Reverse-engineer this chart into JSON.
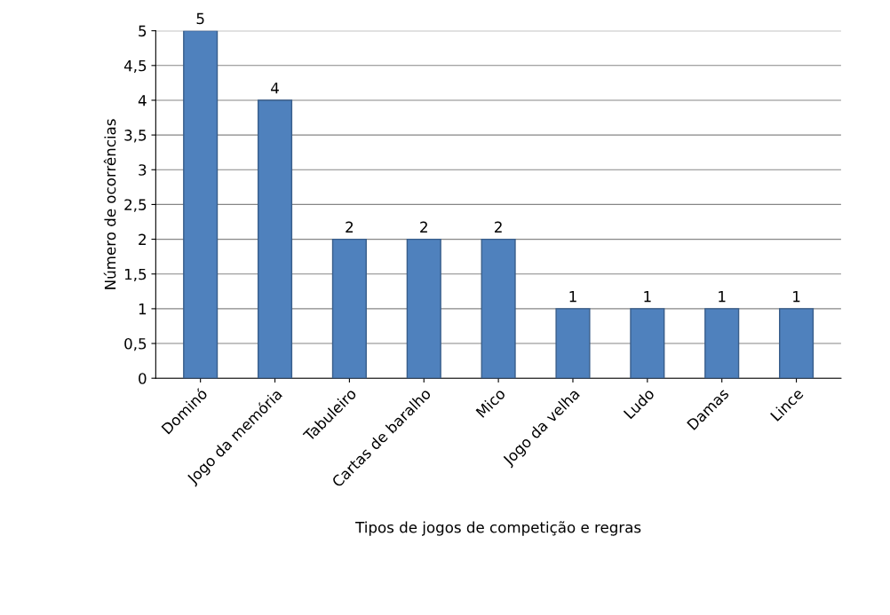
{
  "chart_data": {
    "type": "bar",
    "xlabel": "Tipos de jogos de competição e regras",
    "ylabel": "Número de ocorrências",
    "categories": [
      "Dominó",
      "Jogo da memória",
      "Tabuleiro",
      "Cartas de baralho",
      "Mico",
      "Jogo da velha",
      "Ludo",
      "Damas",
      "Lince"
    ],
    "values": [
      5,
      4,
      2,
      2,
      2,
      1,
      1,
      1,
      1
    ],
    "color": "#4f81bd",
    "ylim": [
      0,
      5
    ],
    "yticks": [
      0,
      {
        "value": 0.5,
        "label": "0,5"
      },
      1,
      {
        "value": 1.5,
        "label": "1,5"
      },
      2,
      {
        "value": 2.5,
        "label": "2,5"
      },
      3,
      {
        "value": 3.5,
        "label": "3,5"
      },
      4,
      {
        "value": 4.5,
        "label": "4,5"
      },
      5
    ],
    "grid": "y",
    "data_labels": true
  }
}
